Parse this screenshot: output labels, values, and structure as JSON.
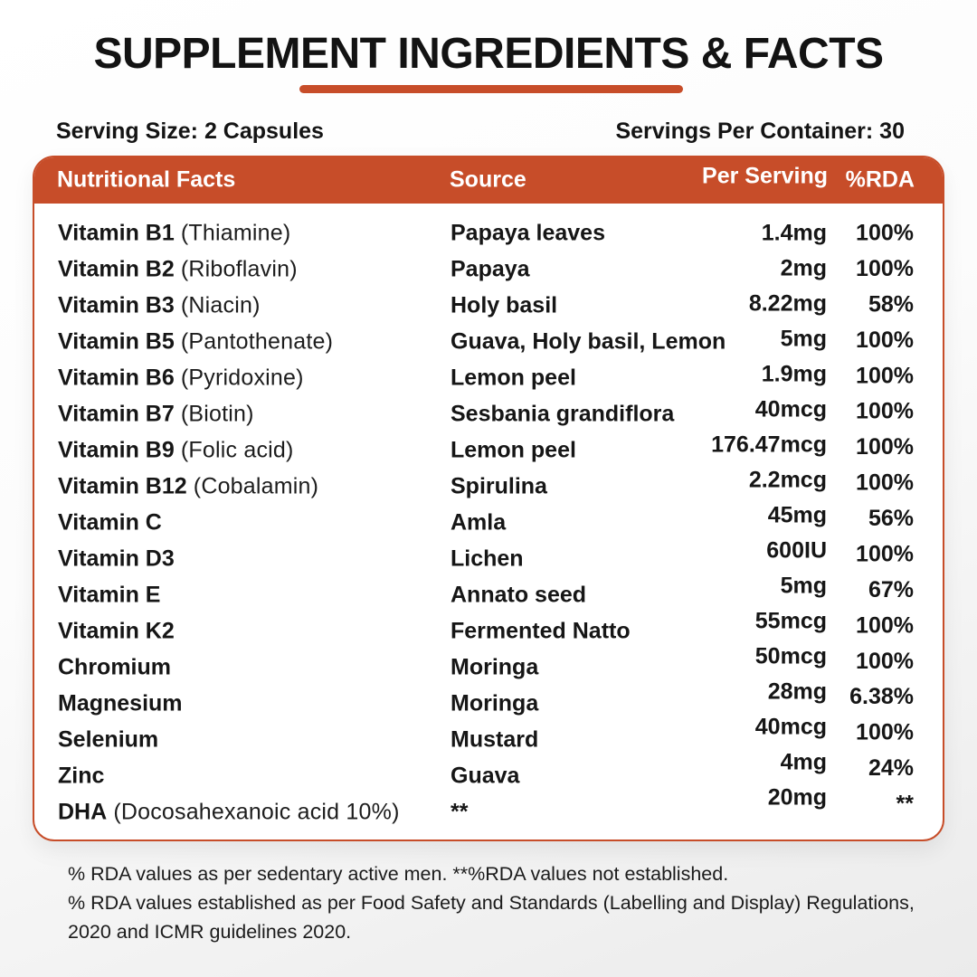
{
  "title": "SUPPLEMENT INGREDIENTS & FACTS",
  "serving": {
    "size": "Serving Size: 2 Capsules",
    "per_container": "Servings Per Container: 30"
  },
  "table": {
    "headers": {
      "nutrient": "Nutritional Facts",
      "source": "Source",
      "per_serving": "Per Serving",
      "rda": "%RDA"
    },
    "rows": [
      {
        "name": "Vitamin B1",
        "detail": "(Thiamine)",
        "source": "Papaya leaves",
        "per_serving": "1.4mg",
        "rda": "100%"
      },
      {
        "name": "Vitamin B2",
        "detail": "(Riboflavin)",
        "source": "Papaya",
        "per_serving": "2mg",
        "rda": "100%"
      },
      {
        "name": "Vitamin B3",
        "detail": "(Niacin)",
        "source": "Holy basil",
        "per_serving": "8.22mg",
        "rda": "58%"
      },
      {
        "name": "Vitamin B5",
        "detail": "(Pantothenate)",
        "source": "Guava, Holy basil, Lemon",
        "per_serving": "5mg",
        "rda": "100%"
      },
      {
        "name": "Vitamin B6",
        "detail": "(Pyridoxine)",
        "source": "Lemon peel",
        "per_serving": "1.9mg",
        "rda": "100%"
      },
      {
        "name": "Vitamin B7",
        "detail": "(Biotin)",
        "source": "Sesbania grandiflora",
        "per_serving": "40mcg",
        "rda": "100%"
      },
      {
        "name": "Vitamin B9",
        "detail": "(Folic acid)",
        "source": "Lemon peel",
        "per_serving": "176.47mcg",
        "rda": "100%"
      },
      {
        "name": "Vitamin B12",
        "detail": "(Cobalamin)",
        "source": "Spirulina",
        "per_serving": "2.2mcg",
        "rda": "100%"
      },
      {
        "name": "Vitamin C",
        "detail": "",
        "source": "Amla",
        "per_serving": "45mg",
        "rda": "56%"
      },
      {
        "name": "Vitamin D3",
        "detail": "",
        "source": "Lichen",
        "per_serving": "600IU",
        "rda": "100%"
      },
      {
        "name": "Vitamin E",
        "detail": "",
        "source": "Annato seed",
        "per_serving": "5mg",
        "rda": "67%"
      },
      {
        "name": "Vitamin K2",
        "detail": "",
        "source": "Fermented Natto",
        "per_serving": "55mcg",
        "rda": "100%"
      },
      {
        "name": "Chromium",
        "detail": "",
        "source": "Moringa",
        "per_serving": "50mcg",
        "rda": "100%"
      },
      {
        "name": "Magnesium",
        "detail": "",
        "source": "Moringa",
        "per_serving": "28mg",
        "rda": "6.38%"
      },
      {
        "name": "Selenium",
        "detail": "",
        "source": "Mustard",
        "per_serving": "40mcg",
        "rda": "100%"
      },
      {
        "name": "Zinc",
        "detail": "",
        "source": "Guava",
        "per_serving": "4mg",
        "rda": "24%"
      },
      {
        "name": "DHA",
        "detail": "(Docosahexanoic acid 10%)",
        "source": "**",
        "per_serving": "20mg",
        "rda": "**"
      }
    ]
  },
  "footnotes": [
    "% RDA values as per sedentary active men. **%RDA values not established.",
    "% RDA values established as per Food Safety and Standards (Labelling and Display) Regulations, 2020 and ICMR guidelines 2020."
  ],
  "colors": {
    "accent": "#C74D29",
    "header_text": "#FFFFFF",
    "text": "#161616"
  }
}
